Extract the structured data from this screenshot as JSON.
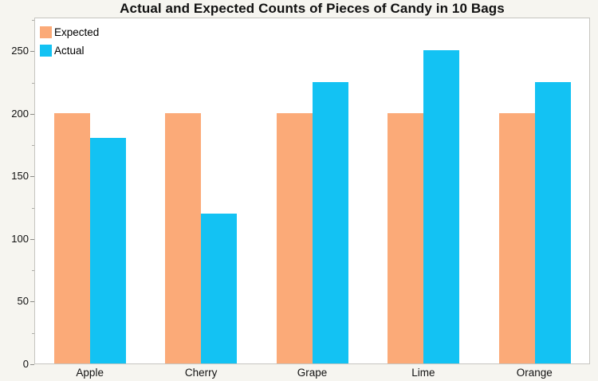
{
  "title": "Actual and Expected Counts of Pieces of Candy in 10 Bags",
  "legend": {
    "items": [
      {
        "label": "Expected"
      },
      {
        "label": "Actual"
      }
    ]
  },
  "chart_data": {
    "type": "bar",
    "title": "Actual and Expected Counts of Pieces of Candy in 10 Bags",
    "categories": [
      "Apple",
      "Cherry",
      "Grape",
      "Lime",
      "Orange"
    ],
    "series": [
      {
        "name": "Expected",
        "color": "#FBAA78",
        "values": [
          200,
          200,
          200,
          200,
          200
        ]
      },
      {
        "name": "Actual",
        "color": "#13C2F3",
        "values": [
          180,
          120,
          225,
          250,
          225
        ]
      }
    ],
    "xlabel": "",
    "ylabel": "",
    "ylim": [
      0,
      277
    ],
    "yticks": [
      0,
      50,
      100,
      150,
      200,
      250
    ],
    "minor_yticks": [
      25,
      75,
      125,
      175,
      225,
      275
    ],
    "grid": false,
    "legend_position": "top-left"
  },
  "colors": {
    "page_background": "#F6F5F0",
    "plot_background": "#FFFFFF",
    "frame_border": "#C6C5C0",
    "tick_mark": "#8A8A86",
    "minor_tick_mark": "#ADADA8",
    "text": "#111111"
  }
}
